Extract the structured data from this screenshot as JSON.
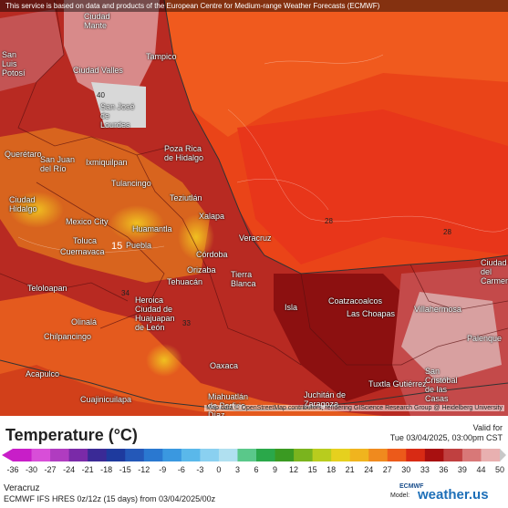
{
  "disclaimer": "This service is based on data and products of the European Centre for Medium-range Weather Forecasts (ECMWF)",
  "attribution": "Map data © OpenStreetMap contributors, rendering GIScience Research Group @ Heidelberg University",
  "legend": {
    "title": "Temperature (°C)",
    "valid_label": "Valid for",
    "valid_time": "Tue 03/04/2025, 03:00pm CST",
    "ticks": [
      "-36",
      "-30",
      "-27",
      "-24",
      "-21",
      "-18",
      "-15",
      "-12",
      "-9",
      "-6",
      "-3",
      "0",
      "3",
      "6",
      "9",
      "12",
      "15",
      "18",
      "21",
      "24",
      "27",
      "30",
      "33",
      "36",
      "39",
      "44",
      "50"
    ],
    "colors": [
      "#c81ec8",
      "#d84ed8",
      "#b03cc0",
      "#7a2aa8",
      "#3a2a96",
      "#1e3a9e",
      "#2458b8",
      "#2a78d0",
      "#3a98e0",
      "#5ab8ea",
      "#8ad0f0",
      "#b0e0f0",
      "#5ac88a",
      "#2aa84a",
      "#3a9a22",
      "#7ab41e",
      "#b8cc1e",
      "#e6d01e",
      "#f0b41e",
      "#f08a1e",
      "#ec5a1a",
      "#d82a14",
      "#a81010",
      "#c04040",
      "#d87878",
      "#e8b0b0",
      "#c8c8c8"
    ]
  },
  "location": "Veracruz",
  "model_line": "ECMWF IFS HRES 0z/12z (15 days) from 03/04/2025/00z",
  "model_label": "Model:",
  "ecmwf_logo": "ECMWF",
  "brand": "weather.us",
  "contours": [
    "40",
    "15",
    "28",
    "28",
    "34",
    "33"
  ],
  "cities": [
    {
      "name": "Ciudad Mante"
    },
    {
      "name": "Tampico"
    },
    {
      "name": "Ciudad Valles"
    },
    {
      "name": "San Luis Potosí"
    },
    {
      "name": "San José de Lourdes"
    },
    {
      "name": "Poza Rica de Hidalgo"
    },
    {
      "name": "Querétaro"
    },
    {
      "name": "San Juan del Río"
    },
    {
      "name": "Ixmiquilpan"
    },
    {
      "name": "Tulancingo"
    },
    {
      "name": "Ciudad Hidalgo"
    },
    {
      "name": "Teziutlán"
    },
    {
      "name": "Xalapa"
    },
    {
      "name": "Mexico City"
    },
    {
      "name": "Huamantla"
    },
    {
      "name": "Toluca"
    },
    {
      "name": "Cuernavaca"
    },
    {
      "name": "Puebla"
    },
    {
      "name": "Córdoba"
    },
    {
      "name": "Orizaba"
    },
    {
      "name": "Veracruz"
    },
    {
      "name": "Tehuacán"
    },
    {
      "name": "Tierra Blanca"
    },
    {
      "name": "Teloloapan"
    },
    {
      "name": "Heroica Ciudad de Huajuapan de León"
    },
    {
      "name": "Isla"
    },
    {
      "name": "Coatzacoalcos"
    },
    {
      "name": "Las Choapas"
    },
    {
      "name": "Villahermosa"
    },
    {
      "name": "Ciudad del Carmen"
    },
    {
      "name": "Palenque"
    },
    {
      "name": "Olinalá"
    },
    {
      "name": "Chilpancingo"
    },
    {
      "name": "Acapulco"
    },
    {
      "name": "Oaxaca"
    },
    {
      "name": "Miahuatlán de Porfirio Díaz"
    },
    {
      "name": "Juchitán de Zaragoza"
    },
    {
      "name": "Tuxtla Gutiérrez"
    },
    {
      "name": "San Cristóbal de las Casas"
    },
    {
      "name": "Cuajinicuilapa"
    }
  ]
}
